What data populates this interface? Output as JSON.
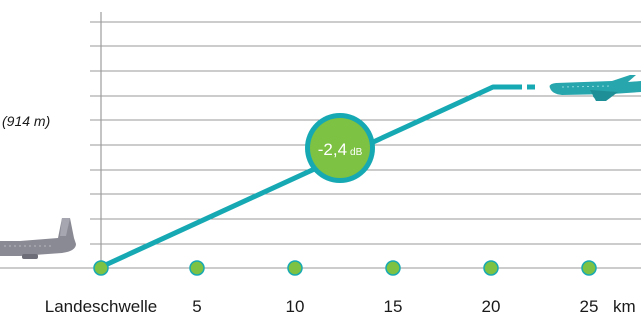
{
  "altitude_label": "(914 m)",
  "noise_reduction": {
    "value": "-2,4",
    "unit": "dB"
  },
  "x_axis": {
    "ticks": [
      "Landeschwelle",
      "5",
      "10",
      "15",
      "20",
      "25"
    ],
    "unit": "km"
  },
  "colors": {
    "flight_path": "#17a9b3",
    "marker_fill": "#7dc242",
    "badge_fill": "#7dc242",
    "badge_ring": "#17a9b3",
    "grid": "#9a9a9a",
    "plane_landing": "#8a8a95",
    "plane_cruise": "#27a6ad"
  },
  "icons": {
    "landing_plane": "airplane-icon",
    "cruise_plane": "airplane-icon"
  }
}
